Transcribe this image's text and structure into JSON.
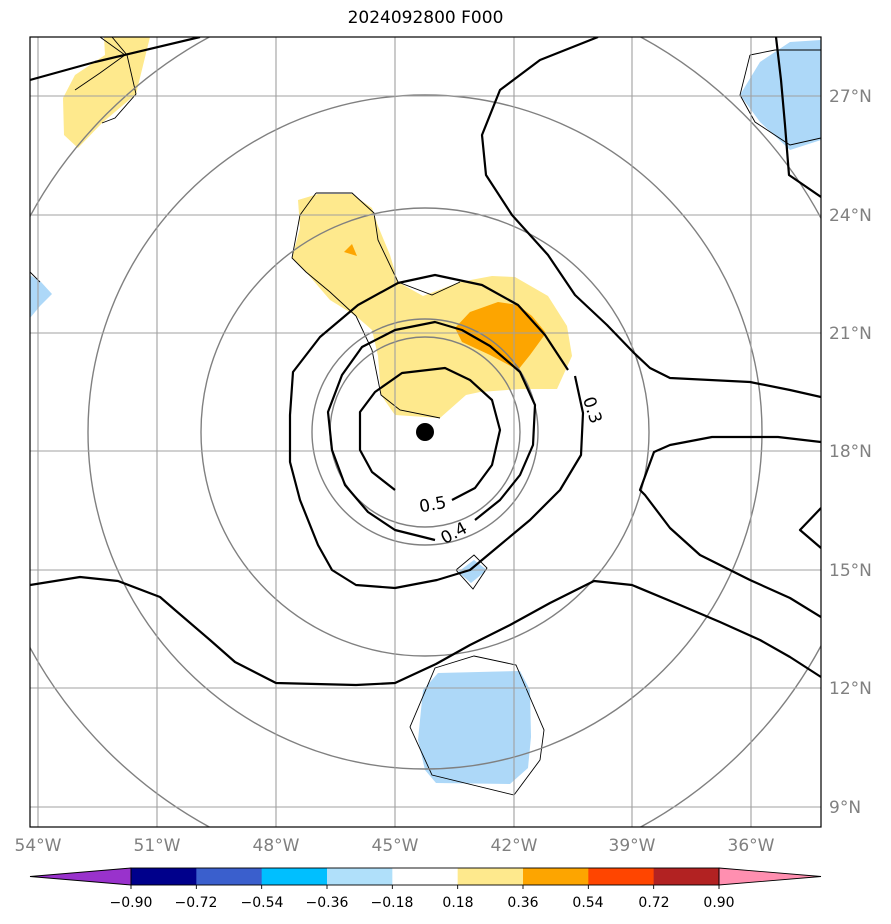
{
  "title": "2024092800 F000",
  "map": {
    "lat_labels": [
      "27°N",
      "24°N",
      "21°N",
      "18°N",
      "15°N",
      "12°N",
      "9°N"
    ],
    "lon_labels": [
      "54°W",
      "51°W",
      "48°W",
      "45°W",
      "42°W",
      "39°W",
      "36°W"
    ],
    "contour_labels": [
      "0.3",
      "0.4",
      "0.5"
    ],
    "storm_center": "black-dot",
    "colors": {
      "light_blue": "#add8f8",
      "light_yellow": "#fee98d",
      "orange": "#fda500",
      "grid": "#a0a0a0",
      "range_rings": "#808080"
    }
  },
  "colorbar": {
    "ticks": [
      "−0.90",
      "−0.72",
      "−0.54",
      "−0.36",
      "−0.18",
      "0.18",
      "0.36",
      "0.54",
      "0.72",
      "0.90"
    ],
    "colors": [
      "#9932cc",
      "#00008b",
      "#3a5fcd",
      "#00bfff",
      "#b0e0fa",
      "#ffffff",
      "#fee98d",
      "#fda500",
      "#ff4500",
      "#b22222",
      "#ff8fb0",
      "#ff8fb0"
    ]
  }
}
